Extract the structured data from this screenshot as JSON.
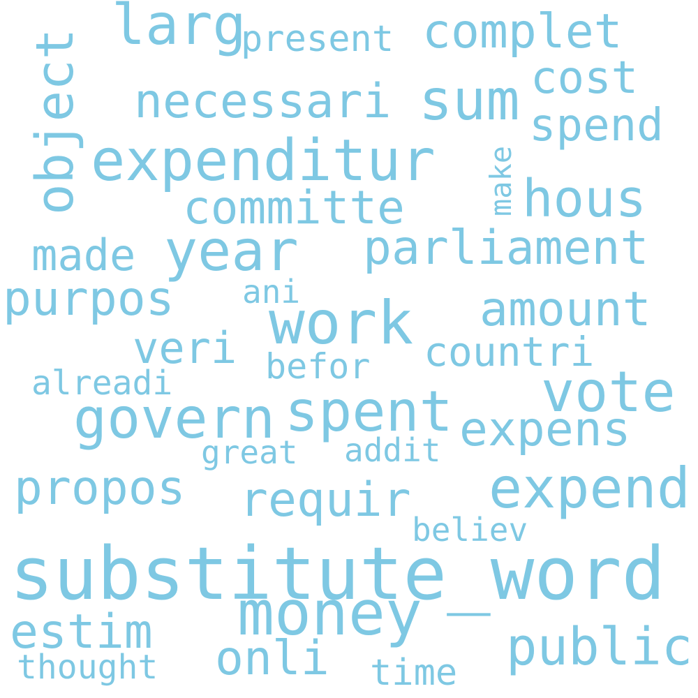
{
  "word_color": "#7ec8e3",
  "background": "#ffffff",
  "words": {
    "substitute_word": "substitute_word",
    "money": "money",
    "expenditur": "expenditur",
    "work": "work",
    "govern": "govern",
    "spent": "spent",
    "vote": "vote",
    "larg": "larg",
    "sum": "sum",
    "year": "year",
    "complet": "complet",
    "expend": "expend",
    "public": "public",
    "object": "object",
    "necessari": "necessari",
    "hous": "hous",
    "parliament": "parliament",
    "purpos": "purpos",
    "amount": "amount",
    "propos": "propos",
    "requir": "requir",
    "expens": "expens",
    "estim": "estim",
    "onli": "onli",
    "committe": "committe",
    "veri": "veri",
    "spend": "spend",
    "cost": "cost",
    "made": "made",
    "countri": "countri",
    "present": "present",
    "befor": "befor",
    "alreadi": "alreadi",
    "thought": "thought",
    "time": "time",
    "believ": "believ",
    "great": "great",
    "addit": "addit",
    "ani": "ani",
    "make": "make"
  }
}
